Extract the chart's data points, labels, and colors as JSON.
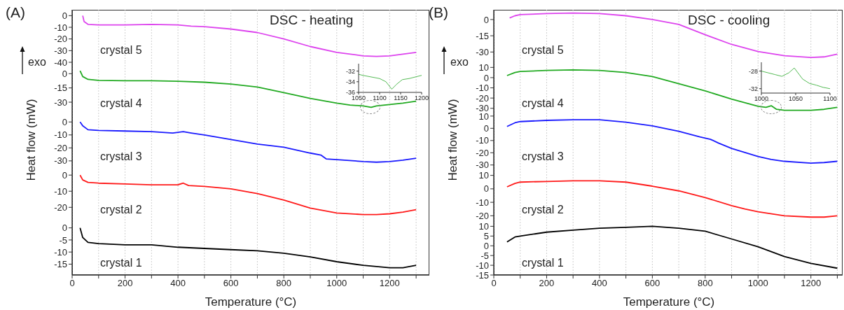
{
  "chart_data": [
    {
      "type": "line",
      "title": "DSC - heating",
      "annotations": [
        "(A)",
        "exo"
      ],
      "xlim": [
        0,
        1350
      ],
      "xticks": [
        0,
        {
          "value": 100,
          "label": null
        },
        200,
        {
          "value": 300,
          "label": null
        },
        400,
        {
          "value": 500,
          "label": null
        },
        600,
        {
          "value": 700,
          "label": null
        },
        800,
        {
          "value": 900,
          "label": null
        },
        1000,
        {
          "value": 1100,
          "label": null
        },
        1200,
        {
          "value": 1300,
          "label": null
        }
      ],
      "ylim": [
        -40,
        5
      ],
      "yticks": [
        0,
        -10,
        -20,
        -30,
        -40
      ],
      "grid": "x",
      "tick_labels": "y",
      "series": [
        {
          "name": "crystal 5",
          "color": "#dd44ee",
          "x": [
            40,
            45,
            60,
            100,
            200,
            300,
            400,
            450,
            500,
            600,
            700,
            800,
            900,
            1000,
            1100,
            1150,
            1200,
            1250,
            1300
          ],
          "values": [
            0,
            -5,
            -7.5,
            -8,
            -8,
            -7.5,
            -8,
            -9,
            -9.5,
            -11.5,
            -14.5,
            -20,
            -26.5,
            -31.5,
            -34.5,
            -35,
            -34.5,
            -33,
            -31.5
          ]
        }
      ]
    },
    {
      "type": "line",
      "xlim": [
        0,
        1350
      ],
      "xticks": [
        0,
        {
          "value": 100,
          "label": null
        },
        200,
        {
          "value": 300,
          "label": null
        },
        400,
        {
          "value": 500,
          "label": null
        },
        600,
        {
          "value": 700,
          "label": null
        },
        800,
        {
          "value": 900,
          "label": null
        },
        1000,
        {
          "value": 1100,
          "label": null
        },
        1200,
        {
          "value": 1300,
          "label": null
        }
      ],
      "ylim": [
        -44,
        12
      ],
      "yticks": [
        0,
        -15,
        -30
      ],
      "grid": "x",
      "tick_labels": "y",
      "series": [
        {
          "name": "crystal 4",
          "color": "#22aa22",
          "x": [
            30,
            40,
            60,
            100,
            200,
            300,
            400,
            500,
            600,
            700,
            800,
            900,
            1000,
            1050,
            1100,
            1130,
            1150,
            1200,
            1250,
            1300
          ],
          "values": [
            3,
            -3,
            -6,
            -7,
            -7.5,
            -7.5,
            -8,
            -9,
            -11,
            -14,
            -20,
            -26,
            -31,
            -33,
            -34,
            -35.5,
            -34,
            -32.5,
            -31,
            -29
          ]
        }
      ]
    },
    {
      "type": "line",
      "xlim": [
        1050,
        1200
      ],
      "xticks": [
        1050,
        1100,
        1150,
        1200
      ],
      "ylim": [
        -36,
        -30.6
      ],
      "yticks": [
        -32,
        -34,
        -36
      ],
      "series": [
        {
          "color": "#55bb55",
          "x": [
            1050,
            1060,
            1080,
            1100,
            1115,
            1129,
            1140,
            1154,
            1170,
            1190,
            1200
          ],
          "values": [
            -32.6,
            -32.8,
            -33.1,
            -33.4,
            -34,
            -35.4,
            -34.5,
            -33.6,
            -33.4,
            -33,
            -32.8
          ]
        }
      ]
    },
    {
      "type": "line",
      "ylabel": "Heat flow (mW)",
      "xlim": [
        0,
        1350
      ],
      "xticks": [
        0,
        {
          "value": 100,
          "label": null
        },
        200,
        {
          "value": 300,
          "label": null
        },
        400,
        {
          "value": 500,
          "label": null
        },
        600,
        {
          "value": 700,
          "label": null
        },
        800,
        {
          "value": 900,
          "label": null
        },
        1000,
        {
          "value": 1100,
          "label": null
        },
        1200,
        {
          "value": 1300,
          "label": null
        }
      ],
      "ylim": [
        -36,
        5
      ],
      "yticks": [
        0,
        -10,
        -20,
        -30
      ],
      "grid": "x",
      "tick_labels": "y",
      "series": [
        {
          "name": "crystal 3",
          "color": "#1a1aff",
          "x": [
            30,
            40,
            60,
            100,
            200,
            300,
            380,
            420,
            450,
            500,
            600,
            700,
            800,
            900,
            940,
            960,
            1000,
            1100,
            1150,
            1200,
            1250,
            1300
          ],
          "values": [
            0,
            -3,
            -6,
            -6.5,
            -7,
            -7.5,
            -8.5,
            -7.5,
            -8.5,
            -10,
            -13.5,
            -17,
            -19.5,
            -24,
            -25.5,
            -28.5,
            -29,
            -30.5,
            -31,
            -30.5,
            -29.5,
            -28
          ]
        }
      ]
    },
    {
      "type": "line",
      "xlim": [
        0,
        1350
      ],
      "xticks": [
        0,
        {
          "value": 100,
          "label": null
        },
        200,
        {
          "value": 300,
          "label": null
        },
        400,
        {
          "value": 500,
          "label": null
        },
        600,
        {
          "value": 700,
          "label": null
        },
        800,
        {
          "value": 900,
          "label": null
        },
        1000,
        {
          "value": 1100,
          "label": null
        },
        1200,
        {
          "value": 1300,
          "label": null
        }
      ],
      "ylim": [
        -29,
        4
      ],
      "yticks": [
        0,
        -10,
        -20
      ],
      "grid": "x",
      "tick_labels": "y",
      "series": [
        {
          "name": "crystal 2",
          "color": "#ff1a1a",
          "x": [
            30,
            40,
            60,
            100,
            200,
            300,
            400,
            420,
            440,
            500,
            600,
            700,
            800,
            900,
            1000,
            1100,
            1150,
            1200,
            1250,
            1300
          ],
          "values": [
            0,
            -3,
            -4.5,
            -5,
            -5.5,
            -6,
            -6,
            -5,
            -6.5,
            -7,
            -8.5,
            -11.5,
            -15.5,
            -20.5,
            -23.5,
            -24.5,
            -24.5,
            -24,
            -23,
            -21.5
          ]
        }
      ]
    },
    {
      "type": "line",
      "xlabel": "Temperature (°C)",
      "xlim": [
        0,
        1350
      ],
      "xticks": [
        0,
        {
          "value": 100,
          "label": null
        },
        200,
        {
          "value": 300,
          "label": null
        },
        400,
        {
          "value": 500,
          "label": null
        },
        600,
        {
          "value": 700,
          "label": null
        },
        800,
        {
          "value": 900,
          "label": null
        },
        1000,
        {
          "value": 1100,
          "label": null
        },
        1200,
        {
          "value": 1300,
          "label": null
        }
      ],
      "ylim": [
        -19.5,
        2.5
      ],
      "yticks": [
        0,
        -5,
        -10,
        -15
      ],
      "grid": "x",
      "series": [
        {
          "name": "crystal 1",
          "color": "#000000",
          "x": [
            30,
            40,
            60,
            100,
            200,
            300,
            400,
            500,
            600,
            700,
            800,
            900,
            1000,
            1100,
            1200,
            1250,
            1300
          ],
          "values": [
            0,
            -4,
            -6,
            -6.5,
            -7,
            -7,
            -8,
            -8.5,
            -9,
            -9.5,
            -10.5,
            -12,
            -14,
            -15.5,
            -16.5,
            -16.5,
            -15.5
          ]
        }
      ]
    },
    {
      "type": "line",
      "title": "DSC - cooling",
      "annotations": [
        "(B)",
        "exo"
      ],
      "xlim": [
        0,
        1320
      ],
      "xticks": [
        0,
        {
          "value": 100,
          "label": null
        },
        200,
        {
          "value": 300,
          "label": null
        },
        400,
        {
          "value": 500,
          "label": null
        },
        600,
        {
          "value": 700,
          "label": null
        },
        800,
        {
          "value": 900,
          "label": null
        },
        1000,
        {
          "value": 1100,
          "label": null
        },
        1200,
        {
          "value": 1300,
          "label": null
        }
      ],
      "ylim": [
        -39.5,
        9
      ],
      "yticks": [
        0,
        -15,
        -30
      ],
      "grid": "x",
      "tick_labels": "y",
      "series": [
        {
          "name": "crystal 5",
          "color": "#dd44ee",
          "x": [
            60,
            80,
            100,
            200,
            300,
            400,
            500,
            600,
            700,
            800,
            900,
            1000,
            1100,
            1200,
            1250,
            1300
          ],
          "values": [
            1.5,
            3.5,
            4.5,
            5.5,
            6,
            5.5,
            3.5,
            0,
            -4.5,
            -14,
            -23,
            -29.5,
            -33.5,
            -35,
            -34.5,
            -32
          ]
        }
      ]
    },
    {
      "type": "line",
      "xlim": [
        0,
        1320
      ],
      "xticks": [
        0,
        {
          "value": 100,
          "label": null
        },
        200,
        {
          "value": 300,
          "label": null
        },
        400,
        {
          "value": 500,
          "label": null
        },
        600,
        {
          "value": 700,
          "label": null
        },
        800,
        {
          "value": 900,
          "label": null
        },
        1000,
        {
          "value": 1100,
          "label": null
        },
        1200,
        {
          "value": 1300,
          "label": null
        }
      ],
      "ylim": [
        -37,
        15
      ],
      "yticks": [
        10,
        0,
        -10,
        -20,
        -30
      ],
      "grid": "x",
      "tick_labels": "y",
      "series": [
        {
          "name": "crystal 4",
          "color": "#22aa22",
          "x": [
            50,
            80,
            100,
            200,
            300,
            400,
            500,
            600,
            700,
            800,
            900,
            1000,
            1030,
            1050,
            1070,
            1100,
            1200,
            1250,
            1300
          ],
          "values": [
            2,
            5,
            6,
            7,
            7.5,
            7,
            5,
            1,
            -6,
            -13,
            -21,
            -28,
            -29,
            -27.5,
            -31,
            -32,
            -32,
            -31,
            -29
          ]
        }
      ]
    },
    {
      "type": "line",
      "xlim": [
        1000,
        1100
      ],
      "xticks": [
        1000,
        1050,
        1100
      ],
      "ylim": [
        -33,
        -26
      ],
      "yticks": [
        -28,
        -32
      ],
      "series": [
        {
          "color": "#55bb55",
          "x": [
            1000,
            1010,
            1020,
            1030,
            1040,
            1048,
            1060,
            1070,
            1080,
            1090,
            1100
          ],
          "values": [
            -28,
            -28.4,
            -28.8,
            -29.2,
            -28.4,
            -27.3,
            -29.8,
            -30.8,
            -31.2,
            -31.7,
            -32
          ]
        }
      ]
    },
    {
      "type": "line",
      "ylabel": "Heat flow (mW)",
      "xlim": [
        0,
        1320
      ],
      "xticks": [
        0,
        {
          "value": 100,
          "label": null
        },
        200,
        {
          "value": 300,
          "label": null
        },
        400,
        {
          "value": 500,
          "label": null
        },
        600,
        {
          "value": 700,
          "label": null
        },
        800,
        {
          "value": 900,
          "label": null
        },
        1000,
        {
          "value": 1100,
          "label": null
        },
        1200,
        {
          "value": 1300,
          "label": null
        }
      ],
      "ylim": [
        -33,
        10.5
      ],
      "yticks": [
        10,
        0,
        -10,
        -20,
        -30
      ],
      "grid": "x",
      "tick_labels": "y",
      "series": [
        {
          "name": "crystal 3",
          "color": "#1a1aff",
          "x": [
            50,
            80,
            100,
            200,
            300,
            400,
            500,
            600,
            700,
            780,
            820,
            850,
            900,
            1000,
            1050,
            1100,
            1200,
            1250,
            1300
          ],
          "values": [
            1.5,
            4.5,
            5.5,
            6.5,
            7,
            7,
            5,
            2,
            -2.5,
            -7,
            -9,
            -12,
            -16.5,
            -23,
            -25.5,
            -27,
            -28.5,
            -28,
            -27
          ]
        }
      ]
    },
    {
      "type": "line",
      "xlim": [
        0,
        1320
      ],
      "xticks": [
        0,
        {
          "value": 100,
          "label": null
        },
        200,
        {
          "value": 300,
          "label": null
        },
        400,
        {
          "value": 500,
          "label": null
        },
        600,
        {
          "value": 700,
          "label": null
        },
        800,
        {
          "value": 900,
          "label": null
        },
        1000,
        {
          "value": 1100,
          "label": null
        },
        1200,
        {
          "value": 1300,
          "label": null
        }
      ],
      "ylim": [
        -24.5,
        15
      ],
      "yticks": [
        10,
        0,
        -10,
        -20
      ],
      "grid": "x",
      "tick_labels": "y",
      "series": [
        {
          "name": "crystal 2",
          "color": "#ff1a1a",
          "x": [
            50,
            80,
            100,
            200,
            300,
            400,
            500,
            600,
            700,
            800,
            900,
            950,
            1000,
            1100,
            1200,
            1250,
            1300
          ],
          "values": [
            1.5,
            4,
            5,
            5.5,
            6,
            6,
            5,
            2,
            -1.5,
            -6.5,
            -12.5,
            -15,
            -17,
            -20,
            -21,
            -21,
            -20
          ]
        }
      ]
    },
    {
      "type": "line",
      "xlabel": "Temperature (°C)",
      "xlim": [
        0,
        1320
      ],
      "xticks": [
        0,
        {
          "value": 100,
          "label": null
        },
        200,
        {
          "value": 300,
          "label": null
        },
        400,
        {
          "value": 500,
          "label": null
        },
        600,
        {
          "value": 700,
          "label": null
        },
        800,
        {
          "value": 900,
          "label": null
        },
        1000,
        {
          "value": 1100,
          "label": null
        },
        1200,
        {
          "value": 1300,
          "label": null
        }
      ],
      "ylim": [
        -15,
        12.3
      ],
      "yticks": [
        10,
        5,
        0,
        -5,
        -10,
        -15
      ],
      "grid": "x",
      "series": [
        {
          "name": "crystal 1",
          "color": "#000000",
          "x": [
            50,
            80,
            100,
            200,
            300,
            400,
            500,
            600,
            700,
            800,
            900,
            1000,
            1100,
            1200,
            1300
          ],
          "values": [
            2,
            4.5,
            5,
            7,
            8,
            9,
            9.5,
            10,
            9,
            7.5,
            3.5,
            -0.5,
            -5.5,
            -9,
            -11.5
          ]
        }
      ]
    }
  ]
}
